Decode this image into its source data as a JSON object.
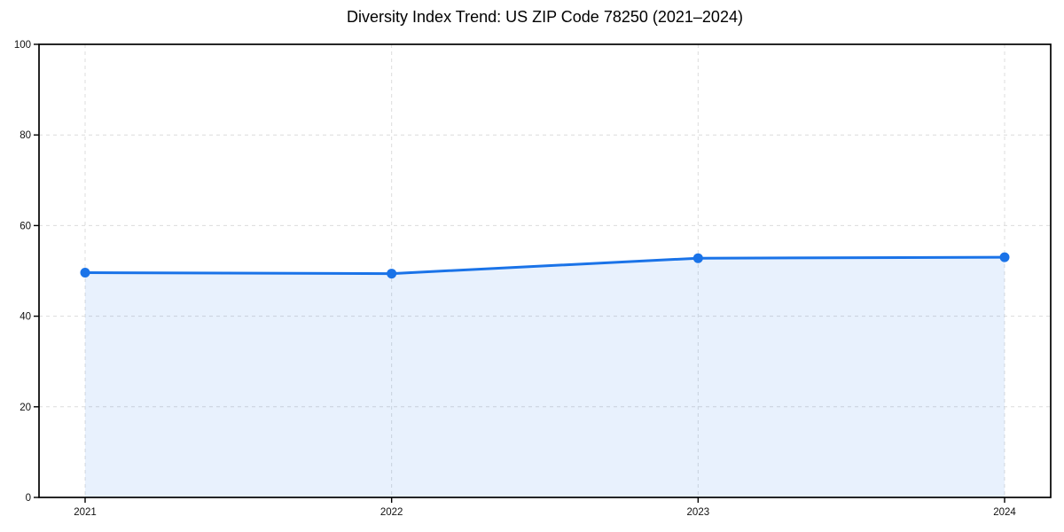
{
  "chart_data": {
    "type": "area",
    "title": "Diversity Index Trend: US ZIP Code 78250 (2021–2024)",
    "x": [
      2021,
      2022,
      2023,
      2024
    ],
    "x_tick_labels": [
      "2021",
      "2022",
      "2023",
      "2024"
    ],
    "series": [
      {
        "name": "Diversity Index",
        "values": [
          49.6,
          49.4,
          52.8,
          53.0
        ]
      }
    ],
    "xlabel": "",
    "ylabel": "",
    "ylim": [
      0,
      100
    ],
    "y_ticks": [
      0,
      20,
      40,
      60,
      80,
      100
    ],
    "y_tick_labels": [
      "0",
      "20",
      "40",
      "60",
      "80",
      "100"
    ],
    "grid": "dashed-both-axes",
    "legend": "none",
    "marker": "circle",
    "colors": {
      "line": "#1a73e8",
      "marker": "#1a73e8",
      "fill": "#1a73e8",
      "fill_opacity": "0.10",
      "grid": "#dcdcdc",
      "axis": "#000000",
      "tick_text": "#111111",
      "background": "#ffffff"
    }
  }
}
